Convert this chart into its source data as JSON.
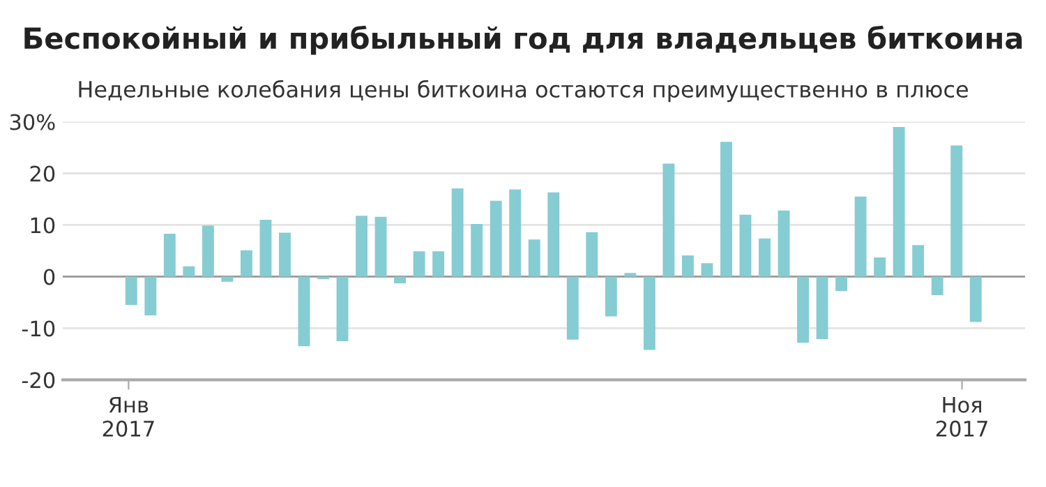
{
  "chart_data": {
    "type": "bar",
    "title": "Беспокойный и прибыльный год для владельцев биткоина",
    "subtitle": "Недельные колебания цены биткоина остаются преимущественно в плюсе",
    "x": [
      "2017-01-02",
      "2017-01-09",
      "2017-01-16",
      "2017-01-23",
      "2017-01-30",
      "2017-02-06",
      "2017-02-13",
      "2017-02-20",
      "2017-02-27",
      "2017-03-06",
      "2017-03-13",
      "2017-03-20",
      "2017-03-27",
      "2017-04-03",
      "2017-04-10",
      "2017-04-17",
      "2017-04-24",
      "2017-05-01",
      "2017-05-08",
      "2017-05-15",
      "2017-05-22",
      "2017-05-29",
      "2017-06-05",
      "2017-06-12",
      "2017-06-19",
      "2017-06-26",
      "2017-07-03",
      "2017-07-10",
      "2017-07-17",
      "2017-07-24",
      "2017-07-31",
      "2017-08-07",
      "2017-08-14",
      "2017-08-21",
      "2017-08-28",
      "2017-09-04",
      "2017-09-11",
      "2017-09-18",
      "2017-09-25",
      "2017-10-02",
      "2017-10-09",
      "2017-10-16",
      "2017-10-23",
      "2017-10-30",
      "2017-11-06"
    ],
    "values": [
      -5.5,
      -7.5,
      8.3,
      2,
      9.9,
      -1,
      5.1,
      11,
      8.5,
      -13.5,
      -0.5,
      -12.5,
      11.8,
      11.6,
      -1.3,
      4.9,
      4.9,
      17.1,
      10.2,
      14.7,
      16.9,
      7.2,
      16.3,
      -12.2,
      8.6,
      -7.7,
      0.7,
      -14.2,
      21.9,
      4.1,
      2.6,
      26.1,
      12,
      7.4,
      12.8,
      -12.8,
      -12.1,
      -2.8,
      15.5,
      3.7,
      29,
      6.1,
      -3.6,
      25.4,
      -8.8
    ],
    "color": "#86ccd3",
    "xlim": [
      "2016-12-08",
      "2017-11-24"
    ],
    "xticks": [
      {
        "value": "2017-01-01",
        "label": "Янв\n2017"
      },
      {
        "value": "2017-11-01",
        "label": "Ноя\n2017"
      }
    ],
    "ylim": [
      -20,
      30
    ],
    "yticks": [
      {
        "value": 30,
        "label": "30%"
      },
      20,
      10,
      0,
      -10,
      -20
    ],
    "grid": "y",
    "ref_lines": [
      {
        "axis": "y",
        "value": 0,
        "color": "#9a9a9a"
      }
    ]
  }
}
